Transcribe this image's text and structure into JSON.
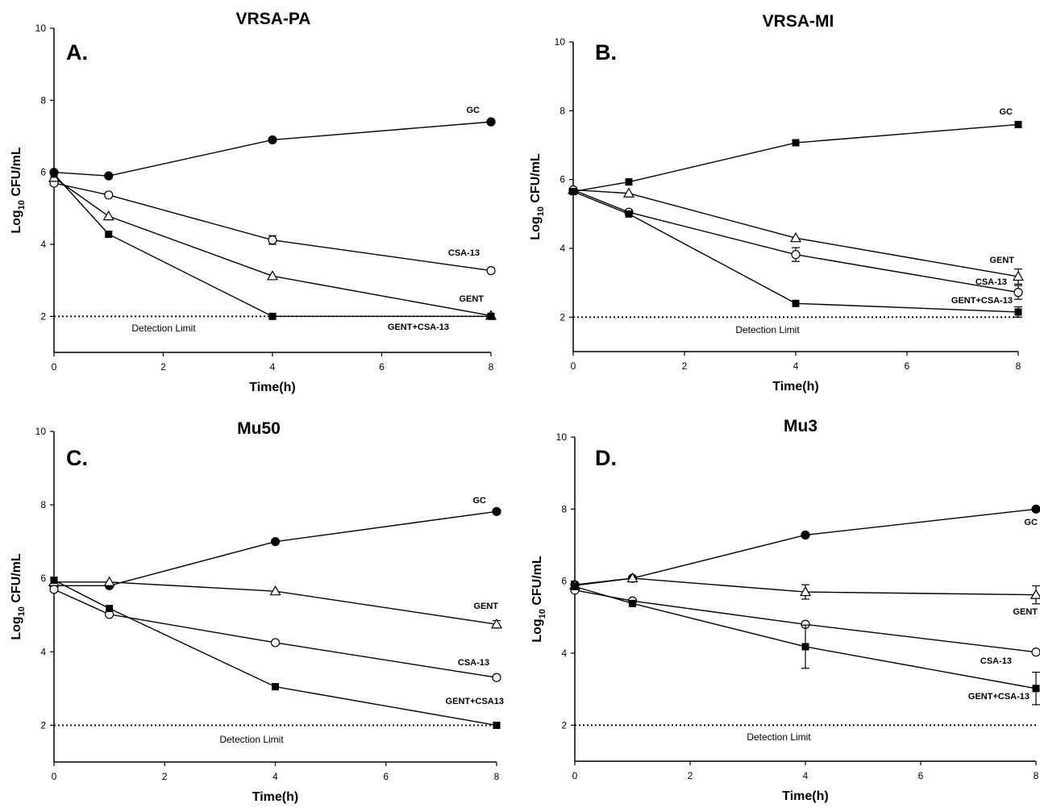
{
  "chart_data": [
    {
      "type": "line",
      "panel": "A.",
      "title": "VRSA-PA",
      "xlabel": "Time(h)",
      "ylabel": "Log10 CFU/mL",
      "xlim": [
        0,
        8
      ],
      "ylim": [
        1,
        10
      ],
      "xticks": [
        "0",
        "2",
        "4",
        "6",
        "8"
      ],
      "yticks": [
        "2",
        "4",
        "6",
        "8",
        "10"
      ],
      "x": [
        0,
        1,
        4,
        8
      ],
      "detection_limit": {
        "value": 2,
        "label": "Detection Limit"
      },
      "series": [
        {
          "name": "GC",
          "marker": "circle-filled",
          "values": [
            6.0,
            5.9,
            6.9,
            7.4
          ],
          "err": [
            0.05,
            0.05,
            0.05,
            0.05
          ]
        },
        {
          "name": "CSA-13",
          "marker": "circle-open",
          "values": [
            5.7,
            5.37,
            4.12,
            3.27
          ],
          "err": [
            0.05,
            0.05,
            0.12,
            0.08
          ]
        },
        {
          "name": "GENT",
          "marker": "triangle-open",
          "values": [
            5.85,
            4.78,
            3.12,
            2.02
          ],
          "err": [
            0.05,
            0.05,
            0.05,
            0.05
          ]
        },
        {
          "name": "GENT+CSA-13",
          "marker": "square-filled",
          "values": [
            5.95,
            4.28,
            2.0,
            2.0
          ],
          "err": [
            0.05,
            0.08,
            0.03,
            0.03
          ]
        }
      ]
    },
    {
      "type": "line",
      "panel": "B.",
      "title": "VRSA-MI",
      "xlabel": "Time(h)",
      "ylabel": "Log10 CFU/mL",
      "xlim": [
        0,
        8
      ],
      "ylim": [
        1,
        10
      ],
      "xticks": [
        "0",
        "2",
        "4",
        "6",
        "8"
      ],
      "yticks": [
        "2",
        "4",
        "6",
        "8",
        "10"
      ],
      "x": [
        0,
        1,
        4,
        8
      ],
      "detection_limit": {
        "value": 2,
        "label": "Detection Limit"
      },
      "series": [
        {
          "name": "GC",
          "marker": "square-filled",
          "values": [
            5.65,
            5.93,
            7.07,
            7.6
          ],
          "err": [
            0.05,
            0.05,
            0.05,
            0.06
          ]
        },
        {
          "name": "GENT",
          "marker": "triangle-open",
          "values": [
            5.7,
            5.6,
            4.3,
            3.18
          ],
          "err": [
            0.05,
            0.05,
            0.05,
            0.22
          ]
        },
        {
          "name": "CSA-13",
          "marker": "circle-open",
          "values": [
            5.7,
            5.05,
            3.82,
            2.72
          ],
          "err": [
            0.05,
            0.05,
            0.2,
            0.2
          ]
        },
        {
          "name": "GENT+CSA-13",
          "marker": "square-filled",
          "values": [
            5.65,
            5.0,
            2.4,
            2.15
          ],
          "err": [
            0.05,
            0.05,
            0.08,
            0.15
          ]
        }
      ]
    },
    {
      "type": "line",
      "panel": "C.",
      "title": "Mu50",
      "xlabel": "Time(h)",
      "ylabel": "Log10 CFU/mL",
      "xlim": [
        0,
        8
      ],
      "ylim": [
        1,
        10
      ],
      "xticks": [
        "0",
        "2",
        "4",
        "6",
        "8"
      ],
      "yticks": [
        "2",
        "4",
        "6",
        "8",
        "10"
      ],
      "x": [
        0,
        1,
        4,
        8
      ],
      "detection_limit": {
        "value": 2,
        "label": "Detection Limit"
      },
      "series": [
        {
          "name": "GC",
          "marker": "circle-filled",
          "values": [
            5.8,
            5.8,
            7.0,
            7.82
          ],
          "err": [
            0.05,
            0.05,
            0.05,
            0.05
          ]
        },
        {
          "name": "GENT",
          "marker": "triangle-open",
          "values": [
            5.9,
            5.9,
            5.65,
            4.75
          ],
          "err": [
            0.05,
            0.05,
            0.05,
            0.1
          ]
        },
        {
          "name": "CSA-13",
          "marker": "circle-open",
          "values": [
            5.7,
            5.02,
            4.25,
            3.3
          ],
          "err": [
            0.05,
            0.05,
            0.05,
            0.08
          ]
        },
        {
          "name": "GENT+CSA13",
          "marker": "square-filled",
          "values": [
            5.95,
            5.18,
            3.05,
            2.0
          ],
          "err": [
            0.05,
            0.05,
            0.05,
            0.03
          ]
        }
      ]
    },
    {
      "type": "line",
      "panel": "D.",
      "title": "Mu3",
      "xlabel": "Time(h)",
      "ylabel": "Log10 CFU/mL",
      "xlim": [
        0,
        8
      ],
      "ylim": [
        1,
        10
      ],
      "xticks": [
        "0",
        "2",
        "4",
        "6",
        "8"
      ],
      "yticks": [
        "2",
        "4",
        "6",
        "8",
        "10"
      ],
      "x": [
        0,
        1,
        4,
        8
      ],
      "detection_limit": {
        "value": 2,
        "label": "Detection Limit"
      },
      "series": [
        {
          "name": "GC",
          "marker": "circle-filled",
          "values": [
            5.9,
            6.08,
            7.28,
            8.0
          ],
          "err": [
            0.05,
            0.05,
            0.05,
            0.05
          ]
        },
        {
          "name": "GENT",
          "marker": "triangle-open",
          "values": [
            5.88,
            6.08,
            5.7,
            5.62
          ],
          "err": [
            0.05,
            0.05,
            0.2,
            0.25
          ]
        },
        {
          "name": "CSA-13",
          "marker": "circle-open",
          "values": [
            5.75,
            5.45,
            4.8,
            4.03
          ],
          "err": [
            0.05,
            0.05,
            0.05,
            0.05
          ]
        },
        {
          "name": "GENT+CSA-13",
          "marker": "square-filled",
          "values": [
            5.85,
            5.38,
            4.18,
            3.02
          ],
          "err": [
            0.05,
            0.05,
            0.6,
            0.45
          ]
        }
      ]
    }
  ]
}
